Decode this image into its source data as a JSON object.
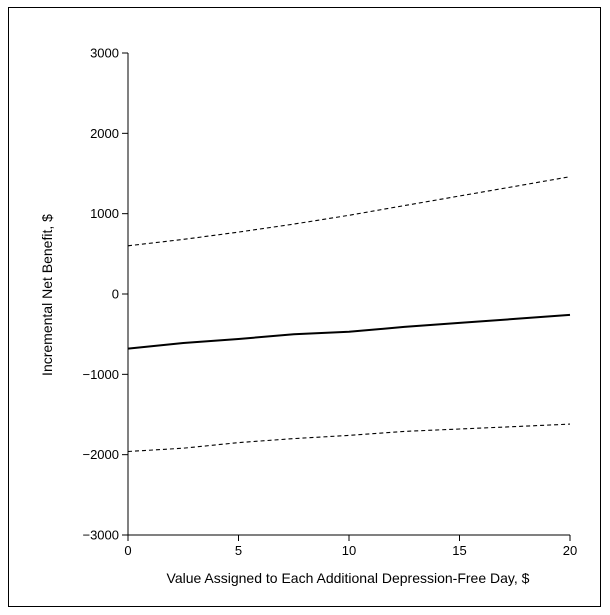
{
  "chart_data": {
    "type": "line",
    "title": "",
    "xlabel": "Value Assigned to Each Additional Depression-Free Day, $",
    "ylabel": "Incremental Net Benefit, $",
    "xlim": [
      0,
      20
    ],
    "ylim": [
      -3000,
      3000
    ],
    "xticks": [
      0,
      5,
      10,
      15,
      20
    ],
    "yticks": [
      3000,
      2000,
      1000,
      0,
      -1000,
      -2000,
      -3000
    ],
    "xtick_labels": [
      "0",
      "5",
      "10",
      "15",
      "20"
    ],
    "ytick_labels": [
      "3000",
      "2000",
      "1000",
      "0",
      "−1000",
      "−2000",
      "−3000"
    ],
    "grid": false,
    "series": [
      {
        "style": "dashed",
        "x": [
          0,
          2.5,
          5,
          7.5,
          10,
          12.5,
          15,
          17.5,
          20
        ],
        "values": [
          600,
          680,
          770,
          870,
          980,
          1100,
          1220,
          1340,
          1460
        ]
      },
      {
        "style": "solid",
        "x": [
          0,
          2.5,
          5,
          7.5,
          10,
          12.5,
          15,
          17.5,
          20
        ],
        "values": [
          -680,
          -610,
          -560,
          -500,
          -470,
          -410,
          -360,
          -310,
          -260
        ]
      },
      {
        "style": "dashed",
        "x": [
          0,
          2.5,
          5,
          7.5,
          10,
          12.5,
          15,
          17.5,
          20
        ],
        "values": [
          -1960,
          -1920,
          -1850,
          -1800,
          -1760,
          -1710,
          -1680,
          -1650,
          -1620
        ]
      }
    ]
  }
}
